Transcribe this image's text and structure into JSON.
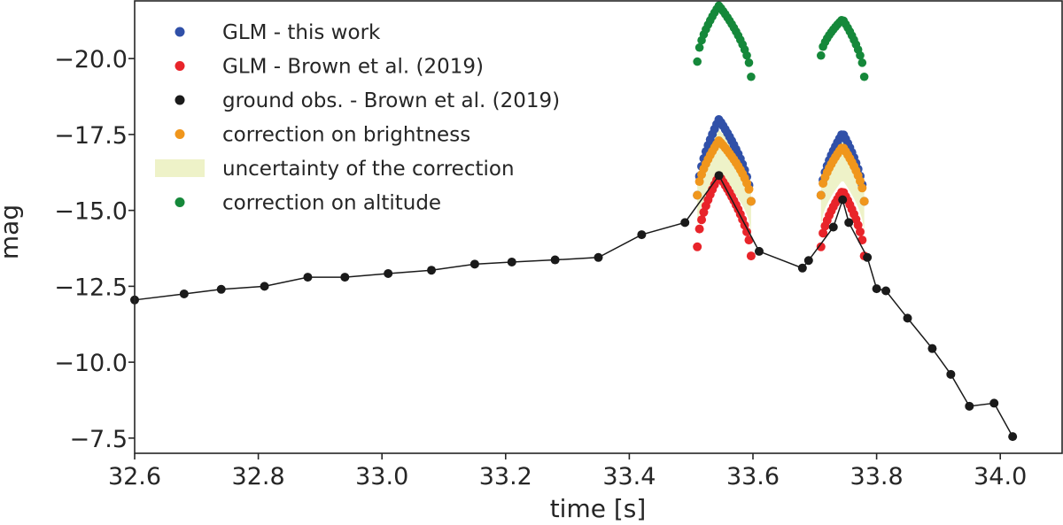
{
  "chart_data": {
    "type": "scatter",
    "xlabel": "time [s]",
    "ylabel": "mag",
    "xlim": [
      32.6,
      34.1
    ],
    "ylim": [
      -7.0,
      -21.9
    ],
    "y_inverted": true,
    "x_ticks": [
      32.6,
      32.8,
      33.0,
      33.2,
      33.4,
      33.6,
      33.8,
      34.0
    ],
    "x_tick_labels": [
      "32.6",
      "32.8",
      "33.0",
      "33.2",
      "33.4",
      "33.6",
      "33.8",
      "34.0"
    ],
    "y_ticks": [
      -20.0,
      -17.5,
      -15.0,
      -12.5,
      -10.0,
      -7.5
    ],
    "y_tick_labels": [
      "−20.0",
      "−17.5",
      "−15.0",
      "−12.5",
      "−10.0",
      "−7.5"
    ],
    "grid": false,
    "legend_position": "top-left",
    "legend": [
      {
        "label": "GLM - this work",
        "color": "#3050a8",
        "kind": "marker"
      },
      {
        "label": "GLM - Brown et al. (2019)",
        "color": "#e8242a",
        "kind": "marker"
      },
      {
        "label": "ground obs. - Brown et al. (2019)",
        "color": "#1a1a1a",
        "kind": "marker"
      },
      {
        "label": "correction on brightness",
        "color": "#f0961c",
        "kind": "marker"
      },
      {
        "label": "uncertainty of the correction",
        "color": "#eef2c8",
        "kind": "band"
      },
      {
        "label": "correction on altitude",
        "color": "#15883a",
        "kind": "marker"
      }
    ],
    "ground": {
      "name": "ground obs. - Brown et al. (2019)",
      "color": "#1a1a1a",
      "x": [
        32.6,
        32.68,
        32.74,
        32.81,
        32.88,
        32.94,
        33.01,
        33.08,
        33.15,
        33.21,
        33.28,
        33.35,
        33.42,
        33.49,
        33.545,
        33.61,
        33.68,
        33.69,
        33.73,
        33.745,
        33.755,
        33.785,
        33.8,
        33.815,
        33.85,
        33.89,
        33.92,
        33.95,
        33.99,
        34.02
      ],
      "y": [
        -12.05,
        -12.25,
        -12.4,
        -12.5,
        -12.8,
        -12.8,
        -12.92,
        -13.03,
        -13.23,
        -13.3,
        -13.37,
        -13.45,
        -14.2,
        -14.6,
        -16.15,
        -13.65,
        -13.1,
        -13.35,
        -14.45,
        -15.35,
        -14.6,
        -13.45,
        -12.42,
        -12.35,
        -11.45,
        -10.45,
        -9.6,
        -8.55,
        -8.65,
        -7.55
      ]
    },
    "peaks": [
      {
        "name": "peak-1",
        "start": 33.51,
        "center": 33.545,
        "end": 33.597,
        "glm_this_work_peak": -18.0,
        "brightness_peak": -17.3,
        "brown_peak": -16.15,
        "altitude_peak": -21.75,
        "altitude_start": -19.9,
        "altitude_end": -19.4,
        "n_points": 26
      },
      {
        "name": "peak-2",
        "start": 33.71,
        "center": 33.745,
        "end": 33.78,
        "glm_this_work_peak": -17.55,
        "brightness_peak": -17.1,
        "brown_peak": -15.65,
        "altitude_peak": -21.3,
        "altitude_start": -20.1,
        "altitude_end": -19.4,
        "n_points": 22
      }
    ]
  }
}
